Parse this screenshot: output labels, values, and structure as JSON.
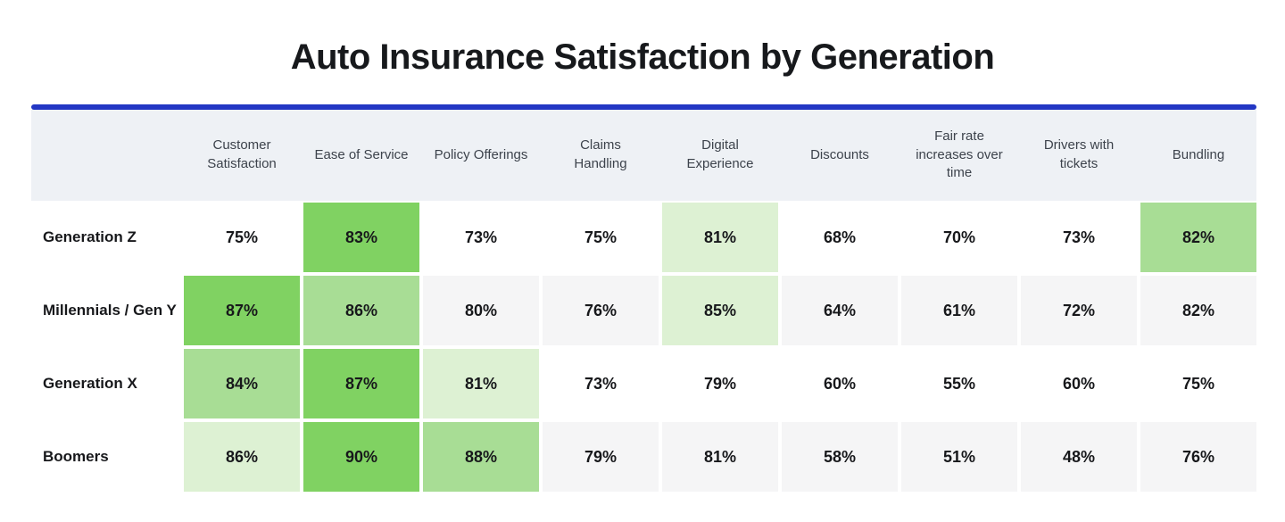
{
  "title": "Auto Insurance Satisfaction by Generation",
  "colors": {
    "divider_blue": "#2337c4",
    "header_bg": "#eef1f5",
    "row_alt_bg": "#f5f5f6",
    "highlight_high": "#80d262",
    "highlight_mid": "#a8dd95",
    "highlight_low": "#ddf1d3",
    "title_text": "#17191c",
    "header_text": "#3d434c",
    "value_text": "#17181b"
  },
  "table": {
    "columns": [
      "Customer Satisfaction",
      "Ease of Service",
      "Policy Offerings",
      "Claims Handling",
      "Digital Experience",
      "Discounts",
      "Fair rate increases over time",
      "Drivers with tickets",
      "Bundling"
    ],
    "rows": [
      {
        "label": "Generation Z",
        "values": [
          "75%",
          "83%",
          "73%",
          "75%",
          "81%",
          "68%",
          "70%",
          "73%",
          "82%"
        ],
        "highlight_tiers": [
          0,
          1,
          0,
          0,
          3,
          0,
          0,
          0,
          2
        ]
      },
      {
        "label": "Millennials / Gen Y",
        "values": [
          "87%",
          "86%",
          "80%",
          "76%",
          "85%",
          "64%",
          "61%",
          "72%",
          "82%"
        ],
        "highlight_tiers": [
          1,
          2,
          0,
          0,
          3,
          0,
          0,
          0,
          0
        ]
      },
      {
        "label": "Generation X",
        "values": [
          "84%",
          "87%",
          "81%",
          "73%",
          "79%",
          "60%",
          "55%",
          "60%",
          "75%"
        ],
        "highlight_tiers": [
          2,
          1,
          3,
          0,
          0,
          0,
          0,
          0,
          0
        ]
      },
      {
        "label": "Boomers",
        "values": [
          "86%",
          "90%",
          "88%",
          "79%",
          "81%",
          "58%",
          "51%",
          "48%",
          "76%"
        ],
        "highlight_tiers": [
          3,
          1,
          2,
          0,
          0,
          0,
          0,
          0,
          0
        ]
      }
    ],
    "highlight_legend": "Top three scores per generation shaded green: tier 1 = highest (dark), tier 2 = second (medium), tier 3 = third (light)"
  },
  "chart_data": {
    "type": "heatmap",
    "title": "Auto Insurance Satisfaction by Generation",
    "columns": [
      "Customer Satisfaction",
      "Ease of Service",
      "Policy Offerings",
      "Claims Handling",
      "Digital Experience",
      "Discounts",
      "Fair rate increases over time",
      "Drivers with tickets",
      "Bundling"
    ],
    "rows": [
      "Generation Z",
      "Millennials / Gen Y",
      "Generation X",
      "Boomers"
    ],
    "values_pct": [
      [
        75,
        83,
        73,
        75,
        81,
        68,
        70,
        73,
        82
      ],
      [
        87,
        86,
        80,
        76,
        85,
        64,
        61,
        72,
        82
      ],
      [
        84,
        87,
        81,
        73,
        79,
        60,
        55,
        60,
        75
      ],
      [
        86,
        90,
        88,
        79,
        81,
        58,
        51,
        48,
        76
      ]
    ],
    "highlight_rank_by_row": [
      [
        0,
        1,
        0,
        0,
        3,
        0,
        0,
        0,
        2
      ],
      [
        1,
        2,
        0,
        0,
        3,
        0,
        0,
        0,
        0
      ],
      [
        2,
        1,
        3,
        0,
        0,
        0,
        0,
        0,
        0
      ],
      [
        3,
        1,
        2,
        0,
        0,
        0,
        0,
        0,
        0
      ]
    ],
    "value_range": [
      48,
      90
    ],
    "unit": "%",
    "legend_position": "none",
    "grid": false
  }
}
